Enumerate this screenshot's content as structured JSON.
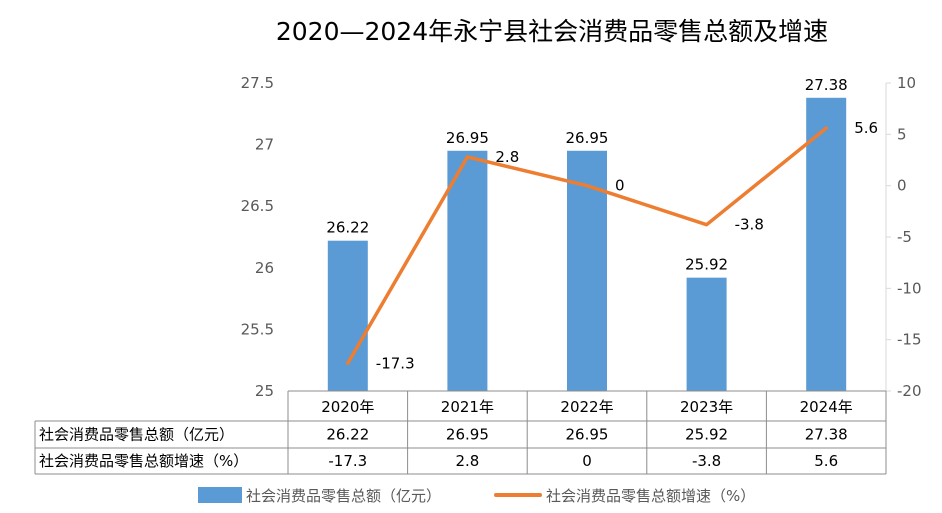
{
  "chart_data": {
    "type": "bar",
    "title": "2020—2024年永宁县社会消费品零售总额及增速",
    "categories": [
      "2020年",
      "2021年",
      "2022年",
      "2023年",
      "2024年"
    ],
    "series": [
      {
        "name": "社会消费品零售总额（亿元）",
        "type": "bar",
        "axis": "left",
        "color": "#5B9BD5",
        "values": [
          26.22,
          26.95,
          26.95,
          25.92,
          27.38
        ],
        "labels": [
          "26.22",
          "26.95",
          "26.95",
          "25.92",
          "27.38"
        ]
      },
      {
        "name": "社会消费品零售总额增速（%）",
        "type": "line",
        "axis": "right",
        "color": "#ED7D31",
        "values": [
          -17.3,
          2.8,
          0,
          -3.8,
          5.6
        ],
        "labels": [
          "-17.3",
          "2.8",
          "0",
          "-3.8",
          "5.6"
        ]
      }
    ],
    "y_left": {
      "range": [
        25,
        27.5
      ],
      "ticks": [
        "25",
        "25.5",
        "26",
        "26.5",
        "27",
        "27.5"
      ]
    },
    "y_right": {
      "range": [
        -20,
        10
      ],
      "ticks": [
        "-20",
        "-15",
        "-10",
        "-5",
        "0",
        "5",
        "10"
      ]
    },
    "grid": false,
    "data_table": true,
    "legend": "bottom"
  }
}
